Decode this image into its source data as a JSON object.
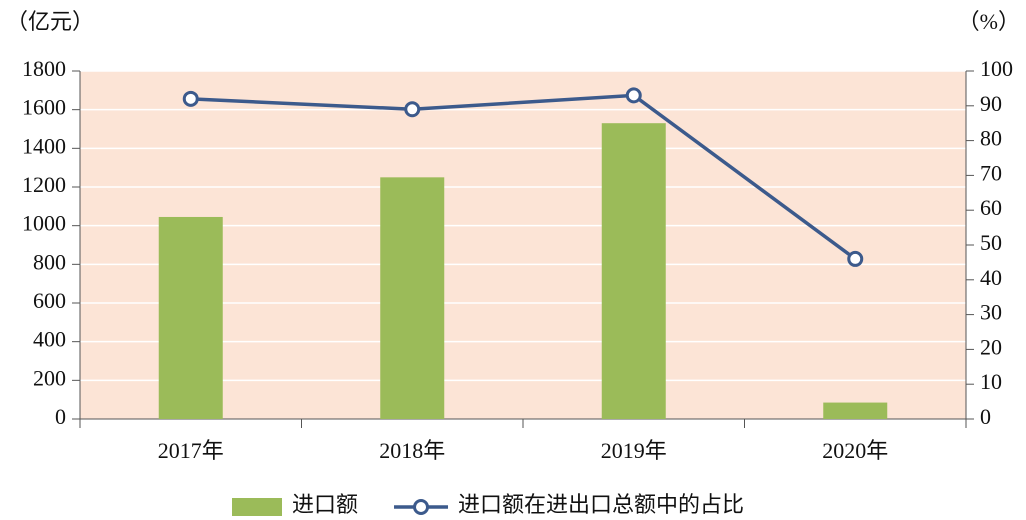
{
  "chart_data": {
    "type": "bar",
    "y_label": "（亿元）",
    "y2_label": "（%）",
    "categories": [
      "2017年",
      "2018年",
      "2019年",
      "2020年"
    ],
    "series": [
      {
        "name": "进口额",
        "type": "bar",
        "color": "#9bbb59",
        "values": [
          1045,
          1250,
          1530,
          85
        ]
      },
      {
        "name": "进口额在进出口总额中的占比",
        "type": "line",
        "axis": "y2",
        "color": "#3c5a8c",
        "values": [
          92,
          89,
          93,
          46
        ]
      }
    ],
    "ylim": [
      0,
      1800
    ],
    "yticks": [
      0,
      200,
      400,
      600,
      800,
      1000,
      1200,
      1400,
      1600,
      1800
    ],
    "y2lim": [
      0,
      100
    ],
    "y2ticks": [
      0,
      10,
      20,
      30,
      40,
      50,
      60,
      70,
      80,
      90,
      100
    ],
    "grid": true,
    "background": "#fce4d6",
    "legend": "bottom"
  }
}
